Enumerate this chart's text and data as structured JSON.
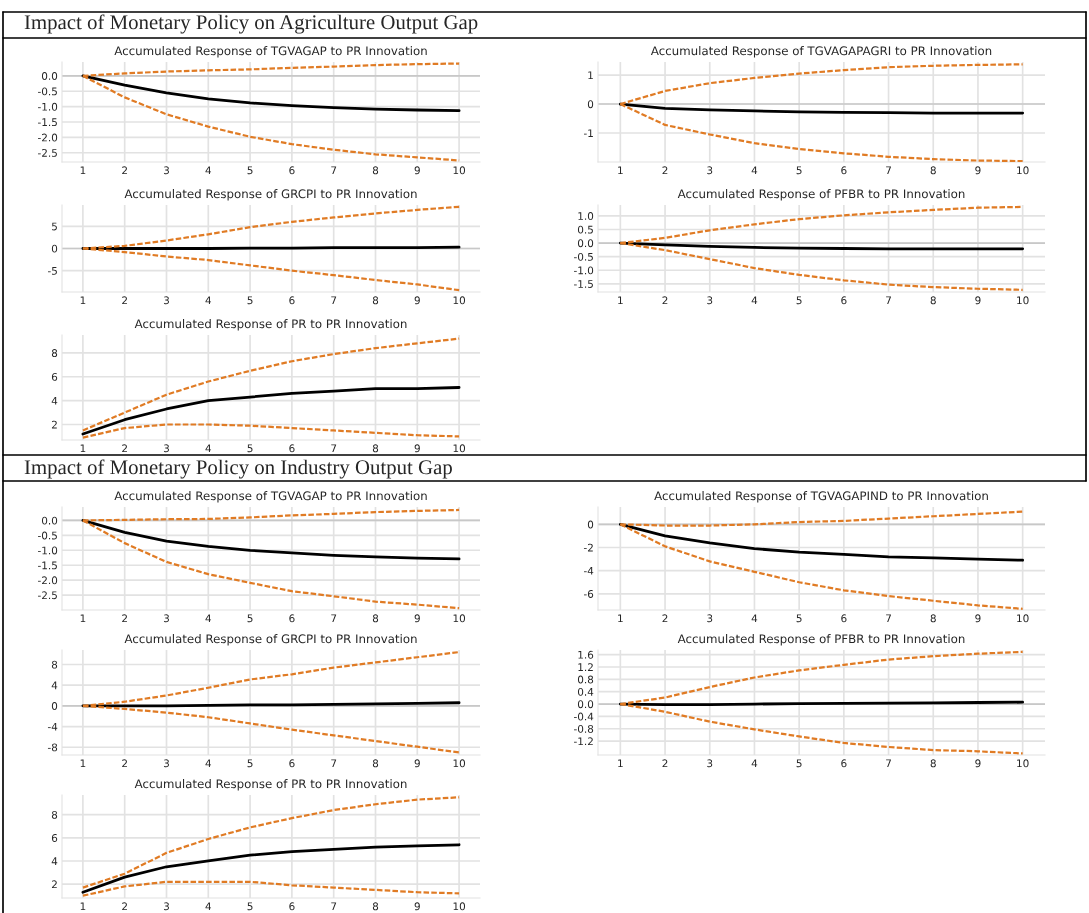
{
  "chart_data": [
    {
      "type": "line",
      "title": "Accumulated Response of TGVAGAP to PR Innovation",
      "annotations": [
        "Impact of Monetary Policy on Agriculture Output Gap"
      ],
      "categories": [
        "1",
        "2",
        "3",
        "4",
        "5",
        "6",
        "7",
        "8",
        "9",
        "10"
      ],
      "ylim": [
        -2.8,
        0.45
      ],
      "yticks": [
        {
          "value": 0,
          "label": "0.0"
        },
        {
          "value": -0.5,
          "label": "-0.5"
        },
        {
          "value": -1,
          "label": "-1.0"
        },
        {
          "value": -1.5,
          "label": "-1.5"
        },
        {
          "value": -2,
          "label": "-2.0"
        },
        {
          "value": -2.5,
          "label": "-2.5"
        }
      ],
      "grid": true,
      "series": [
        {
          "color": "#e07b24",
          "line_style": "dashed",
          "values": [
            0,
            0.08,
            0.14,
            0.18,
            0.21,
            0.26,
            0.3,
            0.35,
            0.38,
            0.4
          ]
        },
        {
          "color": "#e07b24",
          "line_style": "dashed",
          "values": [
            0,
            -0.7,
            -1.25,
            -1.65,
            -1.98,
            -2.22,
            -2.4,
            -2.55,
            -2.65,
            -2.75
          ]
        },
        {
          "color": "#000000",
          "line_style": "solid",
          "values": [
            0,
            -0.3,
            -0.55,
            -0.75,
            -0.88,
            -0.97,
            -1.03,
            -1.08,
            -1.11,
            -1.13
          ]
        }
      ]
    },
    {
      "type": "line",
      "title": "Accumulated Response of TGVAGAPAGRI to PR Innovation",
      "categories": [
        "1",
        "2",
        "3",
        "4",
        "5",
        "6",
        "7",
        "8",
        "9",
        "10"
      ],
      "ylim": [
        -2.0,
        1.45
      ],
      "yticks": [
        -1,
        0,
        1
      ],
      "grid": true,
      "series": [
        {
          "color": "#e07b24",
          "line_style": "dashed",
          "values": [
            0,
            0.45,
            0.72,
            0.9,
            1.05,
            1.17,
            1.27,
            1.32,
            1.35,
            1.37
          ]
        },
        {
          "color": "#e07b24",
          "line_style": "dashed",
          "values": [
            0,
            -0.72,
            -1.05,
            -1.35,
            -1.55,
            -1.7,
            -1.82,
            -1.9,
            -1.95,
            -1.97
          ]
        },
        {
          "color": "#000000",
          "line_style": "solid",
          "values": [
            0,
            -0.15,
            -0.2,
            -0.24,
            -0.27,
            -0.29,
            -0.3,
            -0.31,
            -0.31,
            -0.31
          ]
        }
      ]
    },
    {
      "type": "line",
      "title": "Accumulated Response of GRCPI to PR Innovation",
      "categories": [
        "1",
        "2",
        "3",
        "4",
        "5",
        "6",
        "7",
        "8",
        "9",
        "10"
      ],
      "ylim": [
        -9.8,
        9.8
      ],
      "yticks": [
        -5,
        0,
        5
      ],
      "grid": true,
      "series": [
        {
          "color": "#e07b24",
          "line_style": "dashed",
          "values": [
            0,
            0.6,
            1.8,
            3.2,
            4.8,
            6.0,
            7.0,
            7.9,
            8.7,
            9.4
          ]
        },
        {
          "color": "#e07b24",
          "line_style": "dashed",
          "values": [
            0,
            -0.8,
            -1.8,
            -2.6,
            -3.8,
            -5.0,
            -6.0,
            -7.1,
            -8.1,
            -9.4
          ]
        },
        {
          "color": "#000000",
          "line_style": "solid",
          "values": [
            0,
            0,
            0,
            0,
            0.1,
            0.1,
            0.2,
            0.2,
            0.2,
            0.3
          ]
        }
      ]
    },
    {
      "type": "line",
      "title": "Accumulated Response of PFBR to PR Innovation",
      "categories": [
        "1",
        "2",
        "3",
        "4",
        "5",
        "6",
        "7",
        "8",
        "9",
        "10"
      ],
      "ylim": [
        -1.8,
        1.4
      ],
      "yticks": [
        {
          "value": -1.5,
          "label": "-1.5"
        },
        {
          "value": -1,
          "label": "-1.0"
        },
        {
          "value": -0.5,
          "label": "-0.5"
        },
        {
          "value": 0,
          "label": "0.0"
        },
        {
          "value": 0.5,
          "label": "0.5"
        },
        {
          "value": 1,
          "label": "1.0"
        }
      ],
      "grid": true,
      "series": [
        {
          "color": "#e07b24",
          "line_style": "dashed",
          "values": [
            0,
            0.19,
            0.47,
            0.69,
            0.88,
            1.02,
            1.13,
            1.22,
            1.3,
            1.33
          ]
        },
        {
          "color": "#e07b24",
          "line_style": "dashed",
          "values": [
            0,
            -0.26,
            -0.59,
            -0.92,
            -1.17,
            -1.37,
            -1.53,
            -1.62,
            -1.68,
            -1.72
          ]
        },
        {
          "color": "#000000",
          "line_style": "solid",
          "values": [
            0,
            -0.07,
            -0.12,
            -0.16,
            -0.19,
            -0.2,
            -0.21,
            -0.21,
            -0.21,
            -0.21
          ]
        }
      ]
    },
    {
      "type": "line",
      "title": "Accumulated Response of PR to PR Innovation",
      "categories": [
        "1",
        "2",
        "3",
        "4",
        "5",
        "6",
        "7",
        "8",
        "9",
        "10"
      ],
      "ylim": [
        0.7,
        9.5
      ],
      "yticks": [
        2,
        4,
        6,
        8
      ],
      "grid": true,
      "series": [
        {
          "color": "#e07b24",
          "line_style": "dashed",
          "values": [
            1.5,
            3.0,
            4.5,
            5.6,
            6.5,
            7.3,
            7.9,
            8.4,
            8.8,
            9.2
          ]
        },
        {
          "color": "#e07b24",
          "line_style": "dashed",
          "values": [
            0.9,
            1.7,
            2.0,
            2.0,
            1.9,
            1.7,
            1.5,
            1.3,
            1.1,
            1.0
          ]
        },
        {
          "color": "#000000",
          "line_style": "solid",
          "values": [
            1.2,
            2.4,
            3.3,
            4.0,
            4.3,
            4.6,
            4.8,
            5.0,
            5.0,
            5.1
          ]
        }
      ]
    },
    {
      "type": "line",
      "title": "Accumulated Response of TGVAGAP to PR Innovation",
      "annotations": [
        "Impact of Monetary Policy on Industry Output Gap"
      ],
      "categories": [
        "1",
        "2",
        "3",
        "4",
        "5",
        "6",
        "7",
        "8",
        "9",
        "10"
      ],
      "ylim": [
        -3.0,
        0.45
      ],
      "yticks": [
        {
          "value": 0,
          "label": "0.0"
        },
        {
          "value": -0.5,
          "label": "-0.5"
        },
        {
          "value": -1,
          "label": "-1.0"
        },
        {
          "value": -1.5,
          "label": "-1.5"
        },
        {
          "value": -2,
          "label": "-2.0"
        },
        {
          "value": -2.5,
          "label": "-2.5"
        }
      ],
      "grid": true,
      "series": [
        {
          "color": "#e07b24",
          "line_style": "dashed",
          "values": [
            0,
            0.02,
            0.04,
            0.05,
            0.1,
            0.17,
            0.22,
            0.28,
            0.32,
            0.35
          ]
        },
        {
          "color": "#e07b24",
          "line_style": "dashed",
          "values": [
            0,
            -0.76,
            -1.39,
            -1.8,
            -2.09,
            -2.37,
            -2.54,
            -2.72,
            -2.82,
            -2.94
          ]
        },
        {
          "color": "#000000",
          "line_style": "solid",
          "values": [
            0,
            -0.4,
            -0.69,
            -0.87,
            -1.0,
            -1.09,
            -1.17,
            -1.22,
            -1.26,
            -1.29
          ]
        }
      ]
    },
    {
      "type": "line",
      "title": "Accumulated Response of TGVAGAPIND to PR Innovation",
      "categories": [
        "1",
        "2",
        "3",
        "4",
        "5",
        "6",
        "7",
        "8",
        "9",
        "10"
      ],
      "ylim": [
        -7.4,
        1.5
      ],
      "yticks": [
        -6,
        -4,
        -2,
        0
      ],
      "grid": true,
      "series": [
        {
          "color": "#e07b24",
          "line_style": "dashed",
          "values": [
            0,
            -0.1,
            -0.1,
            0,
            0.2,
            0.3,
            0.5,
            0.7,
            0.9,
            1.1
          ]
        },
        {
          "color": "#e07b24",
          "line_style": "dashed",
          "values": [
            0,
            -1.9,
            -3.2,
            -4.1,
            -5.0,
            -5.7,
            -6.2,
            -6.6,
            -7.0,
            -7.3
          ]
        },
        {
          "color": "#000000",
          "line_style": "solid",
          "values": [
            0,
            -1.0,
            -1.6,
            -2.1,
            -2.4,
            -2.6,
            -2.8,
            -2.9,
            -3.0,
            -3.1
          ]
        }
      ]
    },
    {
      "type": "line",
      "title": "Accumulated Response of GRCPI to PR Innovation",
      "categories": [
        "1",
        "2",
        "3",
        "4",
        "5",
        "6",
        "7",
        "8",
        "9",
        "10"
      ],
      "ylim": [
        -9.5,
        10.8
      ],
      "yticks": [
        -8,
        -4,
        0,
        4,
        8
      ],
      "grid": true,
      "series": [
        {
          "color": "#e07b24",
          "line_style": "dashed",
          "values": [
            0,
            0.8,
            2.0,
            3.5,
            5.1,
            6.1,
            7.4,
            8.4,
            9.4,
            10.4
          ]
        },
        {
          "color": "#e07b24",
          "line_style": "dashed",
          "values": [
            0,
            -0.6,
            -1.3,
            -2.2,
            -3.4,
            -4.6,
            -5.7,
            -6.8,
            -7.9,
            -9.0
          ]
        },
        {
          "color": "#000000",
          "line_style": "solid",
          "values": [
            0,
            0,
            0,
            0.1,
            0.2,
            0.2,
            0.3,
            0.4,
            0.5,
            0.6
          ]
        }
      ]
    },
    {
      "type": "line",
      "title": "Accumulated Response of PFBR to PR Innovation",
      "categories": [
        "1",
        "2",
        "3",
        "4",
        "5",
        "6",
        "7",
        "8",
        "9",
        "10"
      ],
      "ylim": [
        -1.65,
        1.75
      ],
      "yticks": [
        {
          "value": -1.2,
          "label": "-1.2"
        },
        {
          "value": -0.8,
          "label": "-0.8"
        },
        {
          "value": -0.4,
          "label": "-0.4"
        },
        {
          "value": 0,
          "label": "0.0"
        },
        {
          "value": 0.4,
          "label": "0.4"
        },
        {
          "value": 0.8,
          "label": "0.8"
        },
        {
          "value": 1.2,
          "label": "1.2"
        },
        {
          "value": 1.6,
          "label": "1.6"
        }
      ],
      "grid": true,
      "series": [
        {
          "color": "#e07b24",
          "line_style": "dashed",
          "values": [
            0,
            0.21,
            0.55,
            0.86,
            1.09,
            1.27,
            1.44,
            1.55,
            1.63,
            1.69
          ]
        },
        {
          "color": "#e07b24",
          "line_style": "dashed",
          "values": [
            0,
            -0.25,
            -0.57,
            -0.82,
            -1.05,
            -1.26,
            -1.39,
            -1.49,
            -1.53,
            -1.6
          ]
        },
        {
          "color": "#000000",
          "line_style": "solid",
          "values": [
            0,
            -0.02,
            -0.02,
            0,
            0.01,
            0.02,
            0.03,
            0.04,
            0.05,
            0.06
          ]
        }
      ]
    },
    {
      "type": "line",
      "title": "Accumulated Response of PR to PR Innovation",
      "categories": [
        "1",
        "2",
        "3",
        "4",
        "5",
        "6",
        "7",
        "8",
        "9",
        "10"
      ],
      "ylim": [
        0.8,
        9.7
      ],
      "yticks": [
        2,
        4,
        6,
        8
      ],
      "grid": true,
      "series": [
        {
          "color": "#e07b24",
          "line_style": "dashed",
          "values": [
            1.7,
            2.9,
            4.7,
            5.9,
            6.9,
            7.7,
            8.4,
            8.9,
            9.3,
            9.5
          ]
        },
        {
          "color": "#e07b24",
          "line_style": "dashed",
          "values": [
            1.0,
            1.8,
            2.2,
            2.2,
            2.2,
            1.9,
            1.7,
            1.5,
            1.3,
            1.2
          ]
        },
        {
          "color": "#000000",
          "line_style": "solid",
          "values": [
            1.3,
            2.6,
            3.5,
            4.0,
            4.5,
            4.8,
            5.0,
            5.2,
            5.3,
            5.4
          ]
        }
      ]
    }
  ]
}
